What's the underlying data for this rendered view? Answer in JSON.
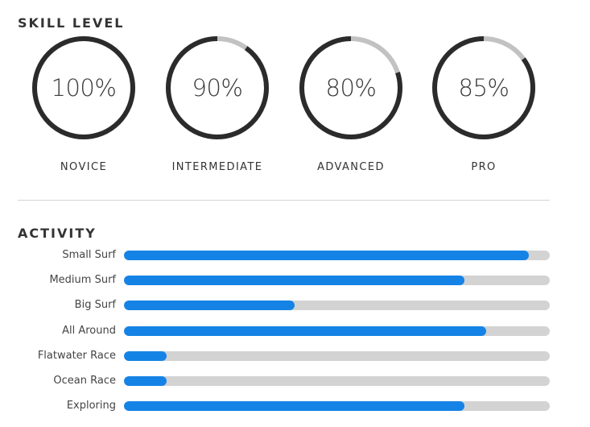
{
  "skill_section": {
    "heading": "SKILL LEVEL",
    "levels": [
      {
        "value_text": "100%",
        "percent": 100,
        "label": "NOVICE"
      },
      {
        "value_text": "90%",
        "percent": 90,
        "label": "INTERMEDIATE"
      },
      {
        "value_text": "80%",
        "percent": 80,
        "label": "ADVANCED"
      },
      {
        "value_text": "85%",
        "percent": 85,
        "label": "PRO"
      }
    ]
  },
  "activity_section": {
    "heading": "ACTIVITY",
    "items": [
      {
        "label": "Small Surf",
        "percent": 95
      },
      {
        "label": "Medium Surf",
        "percent": 80
      },
      {
        "label": "Big Surf",
        "percent": 40
      },
      {
        "label": "All Around",
        "percent": 85
      },
      {
        "label": "Flatwater Race",
        "percent": 10
      },
      {
        "label": "Ocean Race",
        "percent": 10
      },
      {
        "label": "Exploring",
        "percent": 80
      }
    ]
  },
  "colors": {
    "ring_progress": "#2b2b2b",
    "ring_track": "#c2c2c2",
    "bar_fill": "#1583e6",
    "bar_track": "#d3d3d3"
  }
}
